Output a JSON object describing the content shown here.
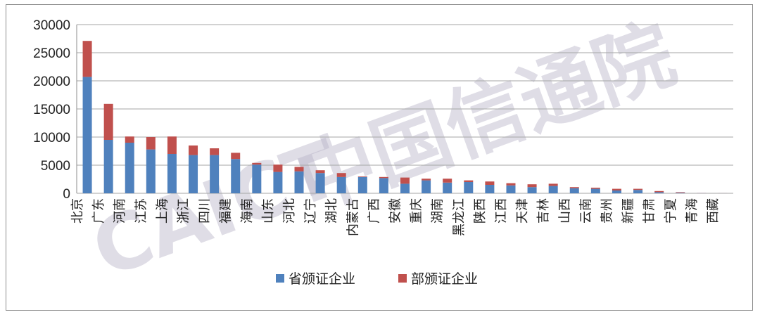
{
  "chart_data": {
    "type": "bar",
    "stacked": true,
    "title": "",
    "xlabel": "",
    "ylabel": "",
    "ylim": [
      0,
      30000
    ],
    "yticks": [
      0,
      5000,
      10000,
      15000,
      20000,
      25000,
      30000
    ],
    "grid": true,
    "legend_position": "bottom",
    "categories": [
      "北京",
      "广东",
      "河南",
      "江苏",
      "上海",
      "浙江",
      "四川",
      "福建",
      "海南",
      "山东",
      "河北",
      "辽宁",
      "湖北",
      "内蒙古",
      "广西",
      "安徽",
      "重庆",
      "湖南",
      "黑龙江",
      "陕西",
      "江西",
      "天津",
      "吉林",
      "山西",
      "云南",
      "贵州",
      "新疆",
      "甘肃",
      "宁夏",
      "青海",
      "西藏"
    ],
    "series": [
      {
        "name": "省颁证企业",
        "color": "#4f81bd",
        "values": [
          20700,
          9500,
          9000,
          7800,
          7000,
          6800,
          6800,
          6100,
          5100,
          3800,
          3900,
          3600,
          2900,
          2900,
          2700,
          1700,
          2300,
          1900,
          2000,
          1500,
          1400,
          1100,
          1300,
          900,
          800,
          500,
          600,
          200,
          100,
          30,
          10
        ]
      },
      {
        "name": "部颁证企业",
        "color": "#c0504d",
        "values": [
          6400,
          6400,
          1100,
          2200,
          3100,
          1700,
          1200,
          1100,
          300,
          1300,
          800,
          500,
          700,
          100,
          200,
          1100,
          300,
          700,
          300,
          600,
          400,
          500,
          400,
          200,
          200,
          300,
          200,
          200,
          100,
          20,
          10
        ]
      }
    ],
    "watermark": {
      "text": "中国信通院",
      "latin": "CAICT",
      "color": "#b9b4c8"
    }
  }
}
